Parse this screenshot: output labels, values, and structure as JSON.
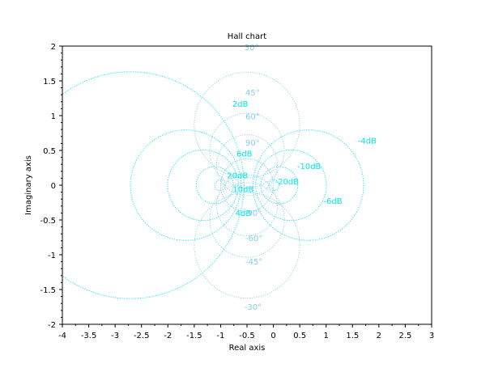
{
  "chart_data": {
    "type": "line",
    "title": "Hall chart",
    "xlabel": "Real axis",
    "ylabel": "Imaginary axis",
    "xlim": [
      -4,
      3
    ],
    "ylim": [
      -2,
      2
    ],
    "x_ticks": [
      -4,
      -3.5,
      -3,
      -2.5,
      -2,
      -1.5,
      -1,
      -0.5,
      0,
      0.5,
      1,
      1.5,
      2,
      2.5,
      3
    ],
    "x_tick_labels": [
      "-4",
      "-3.5",
      "-3",
      "-2.5",
      "-2",
      "-1.5",
      "-1",
      "-0.5",
      "0",
      "0.5",
      "1",
      "1.5",
      "2",
      "2.5",
      "3"
    ],
    "y_ticks": [
      -2,
      -1.5,
      -1,
      -0.5,
      0,
      0.5,
      1,
      1.5,
      2
    ],
    "y_tick_labels": [
      "-2",
      "-1.5",
      "-1",
      "-0.5",
      "0",
      "0.5",
      "1",
      "1.5",
      "2"
    ],
    "grid": false,
    "colors": {
      "magnitude": "#00e5ee",
      "phase": "#87ceeb",
      "axes": "#000000"
    },
    "magnitude_curves_db": [
      -20,
      -10,
      -6,
      -4,
      2,
      4,
      6,
      10,
      20
    ],
    "phase_curves_deg": [
      30,
      45,
      60,
      90,
      -90,
      -60,
      -45,
      -30
    ],
    "magnitude_labels": [
      {
        "text": "2dB",
        "x": -0.78,
        "y": 1.13
      },
      {
        "text": "-4dB",
        "x": 1.6,
        "y": 0.6
      },
      {
        "text": "6dB",
        "x": -0.7,
        "y": 0.41
      },
      {
        "text": "-10dB",
        "x": 0.45,
        "y": 0.23
      },
      {
        "text": "20dB",
        "x": -0.88,
        "y": 0.1
      },
      {
        "text": "-20dB",
        "x": 0.03,
        "y": 0.01
      },
      {
        "text": "10dB",
        "x": -0.77,
        "y": -0.1
      },
      {
        "text": "-6dB",
        "x": 0.95,
        "y": -0.27
      },
      {
        "text": "4dB",
        "x": -0.72,
        "y": -0.44
      }
    ],
    "phase_labels": [
      {
        "text": "30°",
        "x": -0.55,
        "y": 1.94
      },
      {
        "text": "45°",
        "x": -0.53,
        "y": 1.29
      },
      {
        "text": "60°",
        "x": -0.53,
        "y": 0.95
      },
      {
        "text": "90°",
        "x": -0.53,
        "y": 0.57
      },
      {
        "text": "-90°",
        "x": -0.55,
        "y": -0.44
      },
      {
        "text": "-60°",
        "x": -0.53,
        "y": -0.8
      },
      {
        "text": "-45°",
        "x": -0.53,
        "y": -1.14
      },
      {
        "text": "-30°",
        "x": -0.55,
        "y": -1.79
      }
    ]
  }
}
